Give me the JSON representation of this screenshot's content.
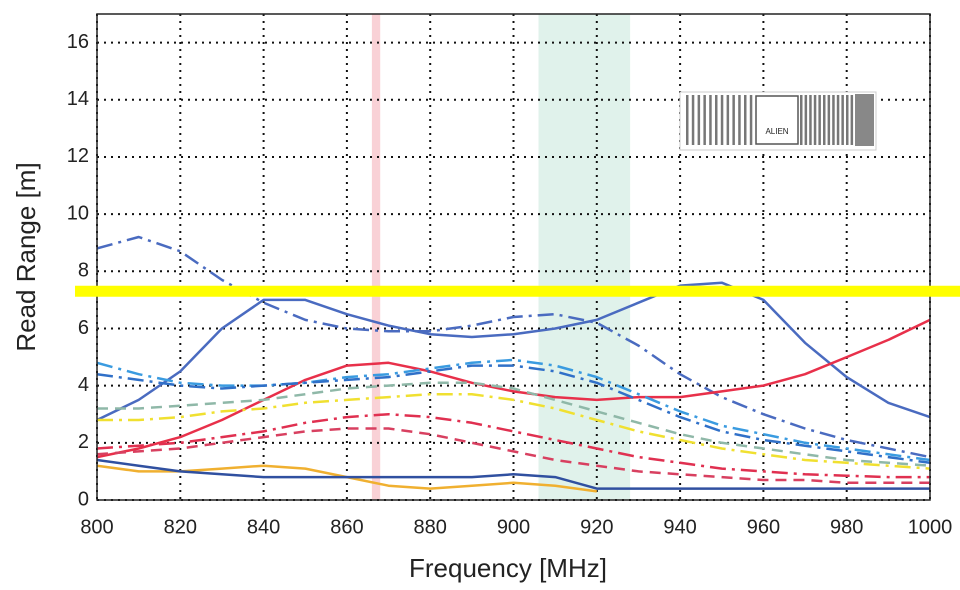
{
  "chart_data": {
    "type": "line",
    "xlabel": "Frequency [MHz]",
    "ylabel": "Read Range [m]",
    "annotation": "ALIEN",
    "x": [
      800,
      810,
      820,
      830,
      840,
      850,
      860,
      870,
      880,
      890,
      900,
      910,
      920,
      930,
      940,
      950,
      960,
      970,
      980,
      990,
      1000
    ],
    "xlim": [
      800,
      1000
    ],
    "xticks": [
      800,
      820,
      840,
      860,
      880,
      900,
      920,
      940,
      960,
      980,
      1000
    ],
    "ylim": [
      0,
      17
    ],
    "yticks": [
      0,
      2,
      4,
      6,
      8,
      10,
      12,
      14,
      16
    ],
    "grid": true,
    "bands": [
      {
        "xlim": [
          866,
          868
        ],
        "color": "#f7c6cc"
      },
      {
        "xlim": [
          906,
          928
        ],
        "color": "#d8efe6"
      }
    ],
    "hline": {
      "value": 7.3,
      "color": "#ffff00"
    },
    "series": [
      {
        "color": "#4a6bc0",
        "style": "solid",
        "values": [
          2.8,
          3.5,
          4.5,
          6.0,
          7.0,
          7.0,
          6.5,
          6.1,
          5.8,
          5.7,
          5.8,
          6.0,
          6.3,
          6.9,
          7.5,
          7.6,
          7.0,
          5.5,
          4.3,
          3.4,
          2.9
        ]
      },
      {
        "color": "#4a6bc0",
        "style": "dashdot",
        "values": [
          8.8,
          9.2,
          8.7,
          7.7,
          6.9,
          6.3,
          6.0,
          5.9,
          5.9,
          6.1,
          6.4,
          6.5,
          6.2,
          5.4,
          4.4,
          3.6,
          3.0,
          2.5,
          2.1,
          1.8,
          1.5
        ]
      },
      {
        "color": "#e8304a",
        "style": "solid",
        "values": [
          1.5,
          1.8,
          2.2,
          2.8,
          3.5,
          4.2,
          4.7,
          4.8,
          4.5,
          4.1,
          3.8,
          3.6,
          3.5,
          3.6,
          3.6,
          3.8,
          4.0,
          4.4,
          5.0,
          5.6,
          6.3
        ]
      },
      {
        "color": "#3a9be0",
        "style": "dashdot",
        "values": [
          4.8,
          4.4,
          4.1,
          4.0,
          4.0,
          4.1,
          4.3,
          4.4,
          4.6,
          4.8,
          4.9,
          4.7,
          4.3,
          3.7,
          3.1,
          2.6,
          2.3,
          2.0,
          1.8,
          1.6,
          1.4
        ]
      },
      {
        "color": "#3070c8",
        "style": "dashdot",
        "values": [
          4.4,
          4.2,
          4.0,
          3.9,
          4.0,
          4.1,
          4.2,
          4.3,
          4.5,
          4.7,
          4.7,
          4.5,
          4.1,
          3.5,
          2.9,
          2.4,
          2.1,
          1.9,
          1.7,
          1.5,
          1.3
        ]
      },
      {
        "color": "#8fb8a8",
        "style": "dash",
        "values": [
          3.2,
          3.2,
          3.3,
          3.4,
          3.5,
          3.7,
          3.9,
          4.0,
          4.1,
          4.1,
          3.9,
          3.5,
          3.1,
          2.7,
          2.3,
          2.0,
          1.8,
          1.6,
          1.4,
          1.3,
          1.2
        ]
      },
      {
        "color": "#f0e030",
        "style": "dashdot",
        "values": [
          2.8,
          2.8,
          2.9,
          3.1,
          3.2,
          3.4,
          3.5,
          3.6,
          3.7,
          3.7,
          3.5,
          3.2,
          2.8,
          2.4,
          2.1,
          1.8,
          1.6,
          1.4,
          1.3,
          1.2,
          1.1
        ]
      },
      {
        "color": "#e03050",
        "style": "dashdot",
        "values": [
          1.8,
          1.9,
          2.0,
          2.2,
          2.4,
          2.7,
          2.9,
          3.0,
          2.9,
          2.7,
          2.4,
          2.1,
          1.8,
          1.5,
          1.3,
          1.1,
          1.0,
          0.9,
          0.85,
          0.8,
          0.8
        ]
      },
      {
        "color": "#d84060",
        "style": "dash",
        "values": [
          1.6,
          1.7,
          1.8,
          2.0,
          2.2,
          2.4,
          2.5,
          2.5,
          2.3,
          2.0,
          1.7,
          1.4,
          1.2,
          1.0,
          0.9,
          0.8,
          0.7,
          0.7,
          0.6,
          0.6,
          0.6
        ]
      },
      {
        "color": "#f0b030",
        "style": "solid",
        "values": [
          1.2,
          1.0,
          1.0,
          1.1,
          1.2,
          1.1,
          0.8,
          0.5,
          0.4,
          0.5,
          0.6,
          0.5,
          0.3,
          null,
          null,
          null,
          null,
          null,
          null,
          null,
          null
        ]
      },
      {
        "color": "#3050a0",
        "style": "solid",
        "values": [
          1.4,
          1.2,
          1.0,
          0.9,
          0.8,
          0.8,
          0.8,
          0.8,
          0.8,
          0.8,
          0.9,
          0.8,
          0.4,
          0.4,
          0.4,
          0.4,
          0.4,
          0.4,
          0.4,
          0.4,
          0.4
        ]
      }
    ]
  }
}
